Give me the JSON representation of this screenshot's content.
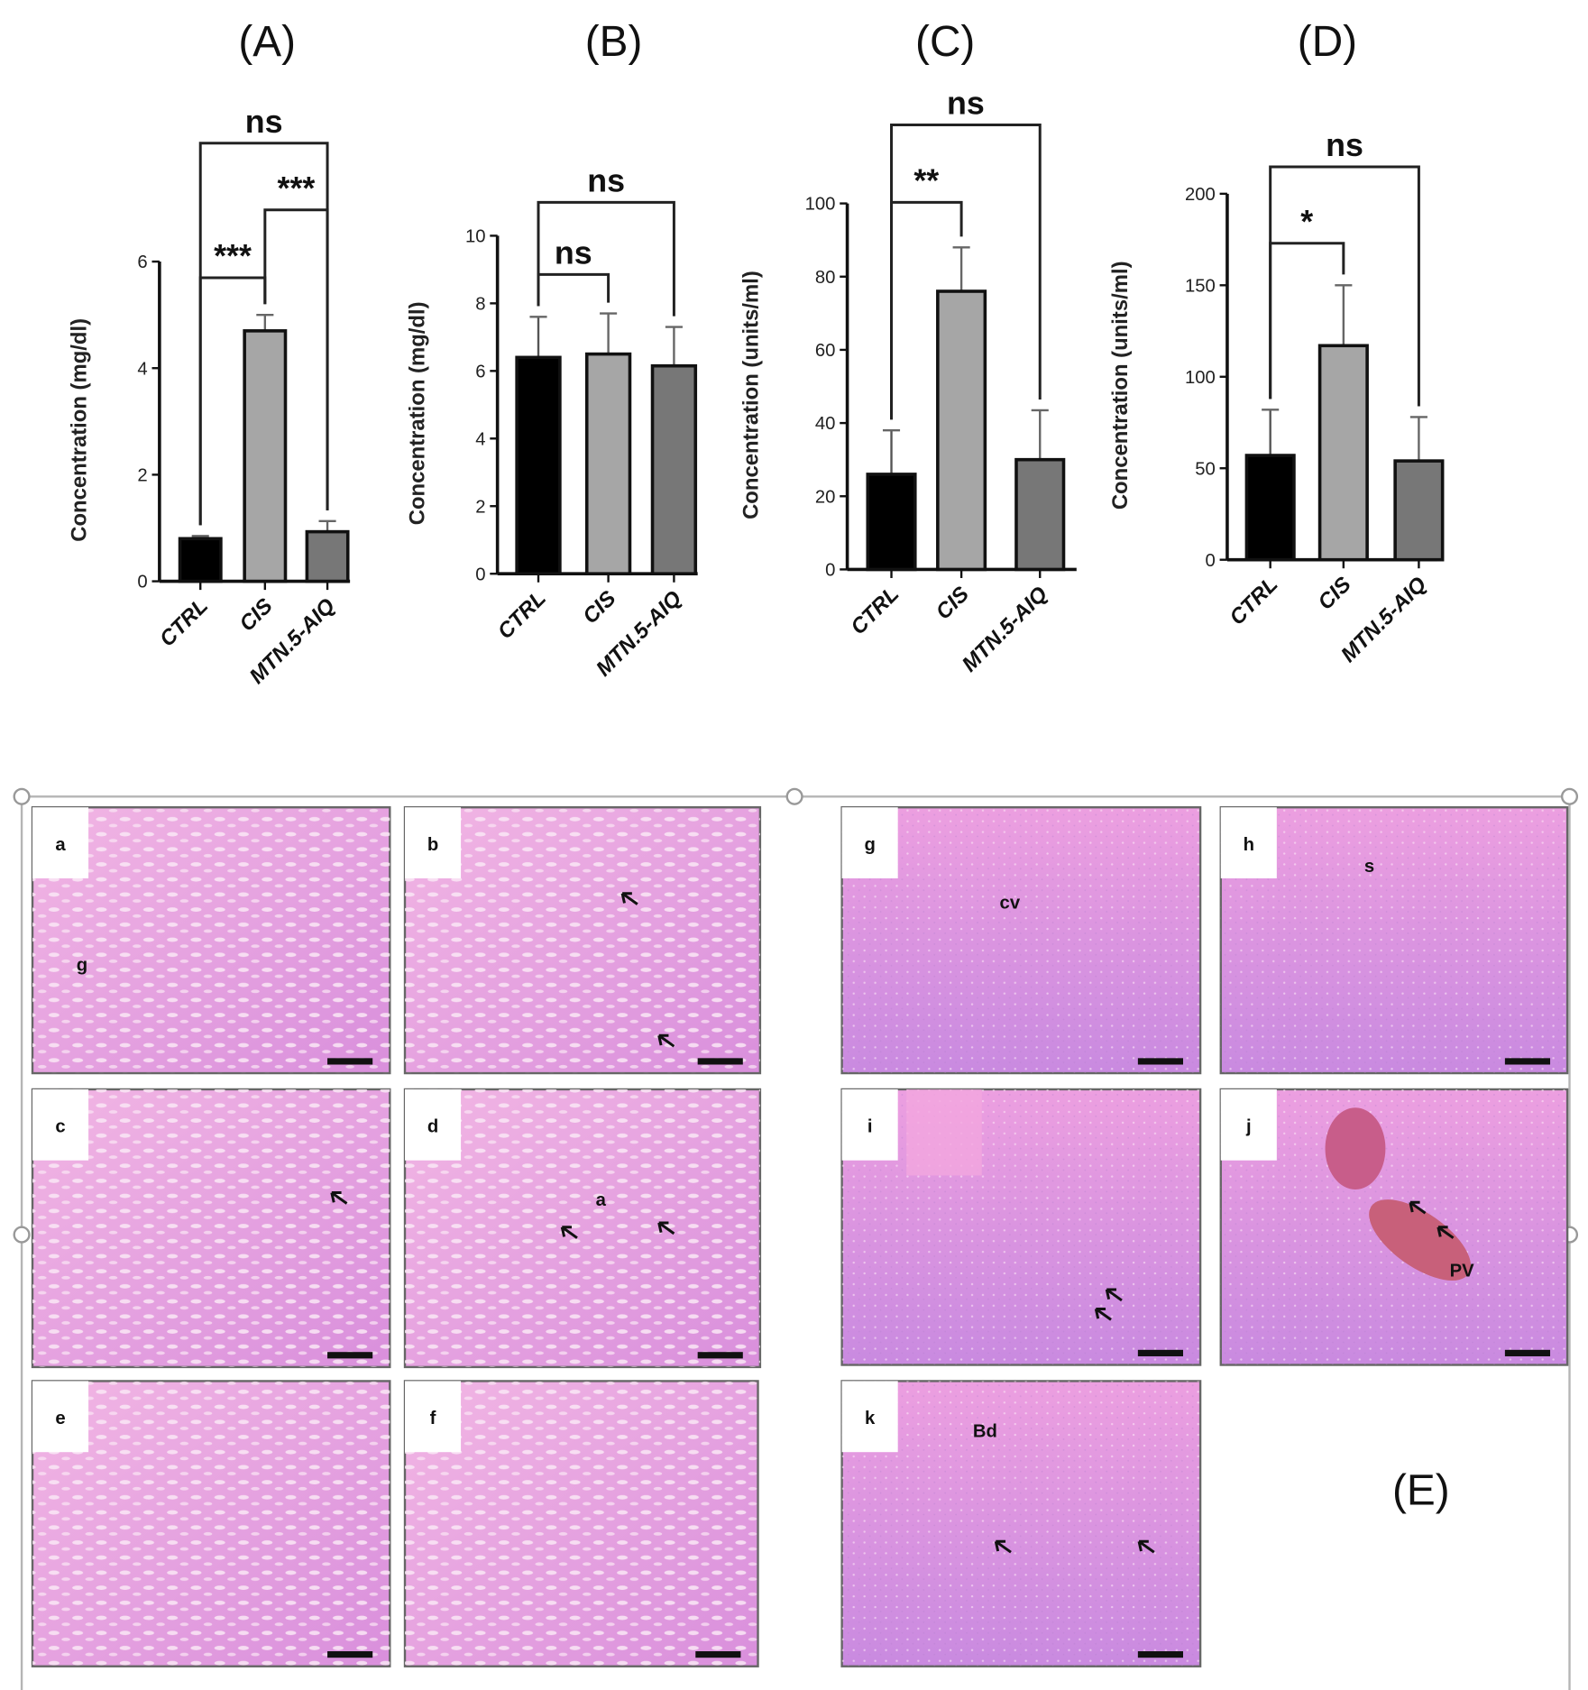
{
  "chart_data": [
    {
      "type": "bar",
      "title": "(A)",
      "ylabel": "Concentration (mg/dl)",
      "ylim": [
        0,
        6
      ],
      "yticks": [
        0,
        2,
        4,
        6
      ],
      "categories": [
        "CTRL",
        "CIS",
        "MTN.5-AIQ"
      ],
      "values": [
        0.8,
        4.7,
        0.93
      ],
      "errors": [
        0.05,
        0.3,
        0.2
      ],
      "colors": [
        "#000000",
        "#a6a6a6",
        "#777777"
      ],
      "comparisons": [
        {
          "a": 0,
          "b": 2,
          "label": "ns",
          "level": 3
        },
        {
          "a": 1,
          "b": 2,
          "label": "***",
          "level": 2
        },
        {
          "a": 0,
          "b": 1,
          "label": "***",
          "level": 1
        }
      ]
    },
    {
      "type": "bar",
      "title": "(B)",
      "ylabel": "Concentration (mg/dl)",
      "ylim": [
        0,
        10
      ],
      "yticks": [
        0,
        2,
        4,
        6,
        8,
        10
      ],
      "categories": [
        "CTRL",
        "CIS",
        "MTN.5-AIQ"
      ],
      "values": [
        6.4,
        6.5,
        6.15
      ],
      "errors": [
        1.2,
        1.2,
        1.15
      ],
      "colors": [
        "#000000",
        "#a6a6a6",
        "#777777"
      ],
      "comparisons": [
        {
          "a": 0,
          "b": 2,
          "label": "ns",
          "level": 2
        },
        {
          "a": 0,
          "b": 1,
          "label": "ns",
          "level": 1
        }
      ]
    },
    {
      "type": "bar",
      "title": "(C)",
      "ylabel": "Concentration (units/ml)",
      "ylim": [
        0,
        100
      ],
      "yticks": [
        0,
        20,
        40,
        60,
        80,
        100
      ],
      "categories": [
        "CTRL",
        "CIS",
        "MTN.5-AIQ"
      ],
      "values": [
        26,
        76,
        30
      ],
      "errors": [
        12,
        12,
        13.5
      ],
      "colors": [
        "#000000",
        "#a6a6a6",
        "#777777"
      ],
      "comparisons": [
        {
          "a": 0,
          "b": 2,
          "label": "ns",
          "level": 2
        },
        {
          "a": 0,
          "b": 1,
          "label": "**",
          "level": 1
        }
      ]
    },
    {
      "type": "bar",
      "title": "(D)",
      "ylabel": "Concentration (units/ml)",
      "ylim": [
        0,
        200
      ],
      "yticks": [
        0,
        50,
        100,
        150,
        200
      ],
      "categories": [
        "CTRL",
        "CIS",
        "MTN.5-AIQ"
      ],
      "values": [
        57,
        117,
        54
      ],
      "errors": [
        25,
        33,
        24
      ],
      "colors": [
        "#000000",
        "#a6a6a6",
        "#777777"
      ],
      "comparisons": [
        {
          "a": 0,
          "b": 2,
          "label": "ns",
          "level": 2
        },
        {
          "a": 0,
          "b": 1,
          "label": "*",
          "level": 1
        }
      ]
    }
  ],
  "histology": {
    "title": "(E)",
    "panels": [
      {
        "label": "a",
        "annotations": [
          "g"
        ]
      },
      {
        "label": "b",
        "annotations": []
      },
      {
        "label": "c",
        "annotations": []
      },
      {
        "label": "d",
        "annotations": [
          "a"
        ]
      },
      {
        "label": "e",
        "annotations": []
      },
      {
        "label": "f",
        "annotations": []
      },
      {
        "label": "g",
        "annotations": [
          "cv"
        ]
      },
      {
        "label": "h",
        "annotations": [
          "s"
        ]
      },
      {
        "label": "i",
        "annotations": []
      },
      {
        "label": "j",
        "annotations": [
          "PV"
        ]
      },
      {
        "label": "k",
        "annotations": [
          "Bd"
        ]
      }
    ]
  }
}
